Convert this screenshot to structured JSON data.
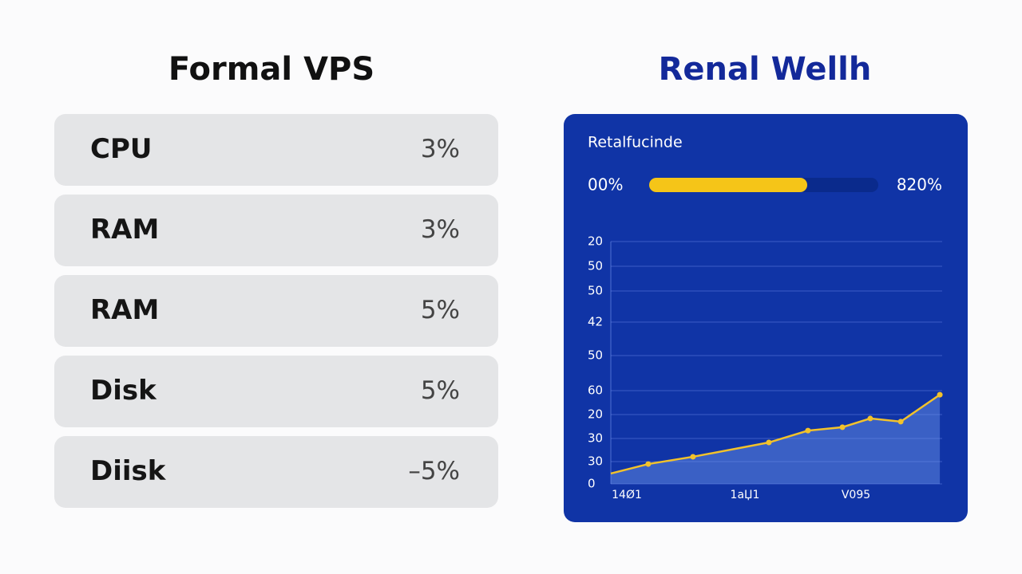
{
  "left_panel": {
    "title": "Formal VPS",
    "rows": [
      [
        "CPU",
        "3%"
      ],
      [
        "RAM",
        "3%"
      ],
      [
        "RAM",
        "5%"
      ],
      [
        "Disk",
        "5%"
      ],
      [
        "Diisk",
        "–5%"
      ]
    ]
  },
  "right_panel": {
    "title": "Renal Wellh",
    "card_label": "Retalfucinde",
    "progress": {
      "min_label": "00%",
      "max_label": "820%",
      "value": 69,
      "range": [
        0,
        100
      ],
      "color": "#f5c518"
    },
    "chart_data": {
      "type": "line",
      "y_labels": [
        "20",
        "50",
        "50",
        "42",
        "50",
        "60",
        "20",
        "30",
        "30",
        "0"
      ],
      "x_labels": [
        "14Ø1",
        "1aЏ1",
        "V095"
      ],
      "x": [
        0,
        11.3,
        24.8,
        47.7,
        59.5,
        69.9,
        78.3,
        87.5,
        99.3
      ],
      "values": [
        4.3,
        8.2,
        11.2,
        17.1,
        22.0,
        23.4,
        27.0,
        25.7,
        36.8
      ],
      "xlim": [
        0,
        100
      ],
      "ylim": [
        0,
        100
      ],
      "color": "#f2c22b",
      "grid": true
    }
  }
}
